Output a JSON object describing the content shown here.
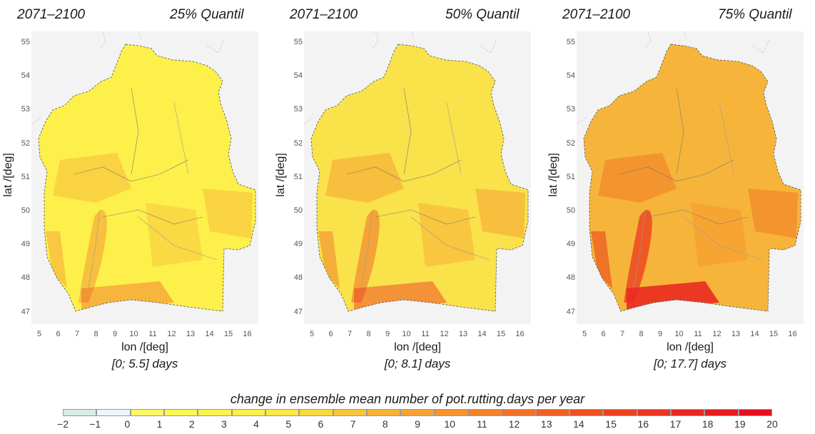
{
  "panels": [
    {
      "period": "2071–2100",
      "quantile_label": "25% Quantil",
      "range_label": "[0; 5.5] days",
      "xlabel": "lon /[deg]",
      "ylabel": "lat /[deg]",
      "max_value": 5.5,
      "base_color": "#fdf04a"
    },
    {
      "period": "2071–2100",
      "quantile_label": "50% Quantil",
      "range_label": "[0; 8.1] days",
      "xlabel": "lon /[deg]",
      "ylabel": "lat /[deg]",
      "max_value": 8.1,
      "base_color": "#f9e24a"
    },
    {
      "period": "2071–2100",
      "quantile_label": "75% Quantil",
      "range_label": "[0; 17.7] days",
      "xlabel": "lon /[deg]",
      "ylabel": "lat /[deg]",
      "max_value": 17.7,
      "base_color": "#f6b53a"
    }
  ],
  "axes": {
    "lat_ticks": [
      "55",
      "54",
      "53",
      "52",
      "51",
      "50",
      "49",
      "48",
      "47"
    ],
    "lon_ticks": [
      "5",
      "6",
      "7",
      "8",
      "9",
      "10",
      "11",
      "12",
      "13",
      "14",
      "15",
      "16"
    ]
  },
  "legend": {
    "title": "change in ensemble mean number of pot.rutting.days per year",
    "labels": [
      "−2",
      "−1",
      "0",
      "1",
      "2",
      "3",
      "4",
      "5",
      "6",
      "7",
      "8",
      "9",
      "10",
      "11",
      "12",
      "13",
      "14",
      "15",
      "16",
      "17",
      "18",
      "19",
      "20"
    ],
    "colors": [
      "#d9ebe6",
      "#eef6fb",
      "#fdf866",
      "#fef654",
      "#fdf24c",
      "#fdef48",
      "#fde845",
      "#fbd93e",
      "#f9c63a",
      "#f7b336",
      "#f6a333",
      "#f59430",
      "#f3832c",
      "#f27129",
      "#f06126",
      "#ee5224",
      "#ed4222",
      "#eb3421",
      "#ea2720",
      "#e9191f",
      "#e80d1e"
    ]
  }
}
